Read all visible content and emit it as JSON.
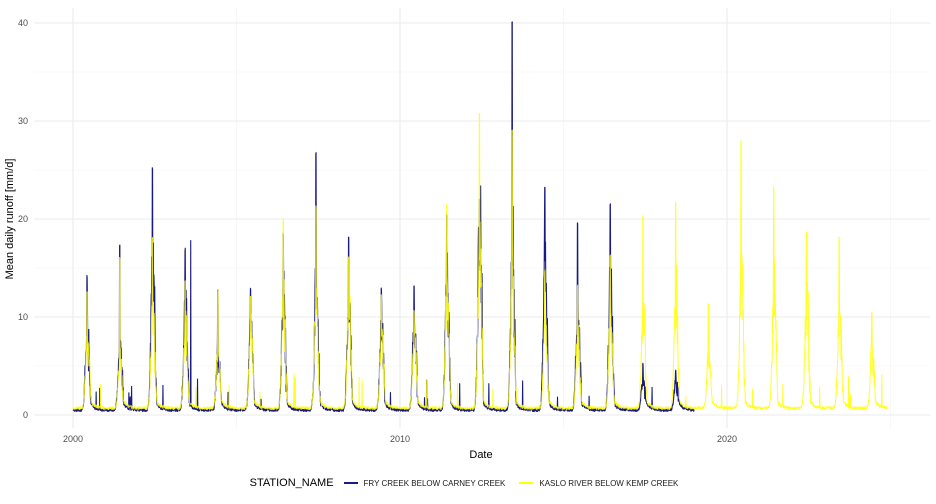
{
  "chart_data": {
    "type": "line",
    "title": "",
    "xlabel": "Date",
    "ylabel": "Mean daily runoff [mm/d]",
    "xlim": [
      1998.9,
      2026.2
    ],
    "ylim": [
      -1.2,
      41.5
    ],
    "x_ticks": [
      2000,
      2010,
      2020
    ],
    "x_tick_labels": [
      "2000",
      "2010",
      "2020"
    ],
    "x_minor_ticks": [
      2005,
      2015,
      2025
    ],
    "y_ticks": [
      0,
      10,
      20,
      30,
      40
    ],
    "y_tick_labels": [
      "0",
      "10",
      "20",
      "30",
      "40"
    ],
    "y_minor_ticks": [
      5,
      15,
      25,
      35
    ],
    "grid": true,
    "legend_position": "bottom",
    "legend_title": "STATION_NAME",
    "series": [
      {
        "name": "FRY CREEK BELOW CARNEY CREEK",
        "color": "#1a1a80",
        "x_range": [
          2000.0,
          2019.0
        ],
        "annual_peaks": [
          {
            "year": 2000,
            "peak": 13.6,
            "secondary": 10.3
          },
          {
            "year": 2001,
            "peak": 16.7,
            "secondary": 8.3
          },
          {
            "year": 2002,
            "peak": 24.6,
            "secondary": 18.5
          },
          {
            "year": 2003,
            "peak": 16.4,
            "secondary": 13.0
          },
          {
            "year": 2003.6,
            "peak": 17.8,
            "secondary": 3.0
          },
          {
            "year": 2004,
            "peak": 12.3,
            "secondary": 7.3
          },
          {
            "year": 2005,
            "peak": 12.3,
            "secondary": 11.0
          },
          {
            "year": 2006,
            "peak": 18.0,
            "secondary": 14.3
          },
          {
            "year": 2007,
            "peak": 26.2,
            "secondary": 15.8
          },
          {
            "year": 2008,
            "peak": 17.6,
            "secondary": 14.5
          },
          {
            "year": 2009,
            "peak": 12.3,
            "secondary": 10.0
          },
          {
            "year": 2010,
            "peak": 12.7,
            "secondary": 11.2
          },
          {
            "year": 2011,
            "peak": 19.8,
            "secondary": 15.0
          },
          {
            "year": 2012,
            "peak": 21.6,
            "secondary": 24.5
          },
          {
            "year": 2013,
            "peak": 39.7,
            "secondary": 19.0
          },
          {
            "year": 2014,
            "peak": 22.6,
            "secondary": 18.7
          },
          {
            "year": 2015,
            "peak": 19.0,
            "secondary": 13.0
          },
          {
            "year": 2016,
            "peak": 21.1,
            "secondary": 16.0
          },
          {
            "year": 2017,
            "peak": 4.8,
            "secondary": 3.9
          },
          {
            "year": 2018,
            "peak": 4.0,
            "secondary": 3.4
          }
        ]
      },
      {
        "name": "KASLO RIVER BELOW KEMP CREEK",
        "color": "#ffff00",
        "x_range": [
          2000.0,
          2024.9
        ],
        "annual_peaks": [
          {
            "year": 2000,
            "peak": 12.0,
            "secondary": 9.0
          },
          {
            "year": 2001,
            "peak": 15.3,
            "secondary": 6.0
          },
          {
            "year": 2002,
            "peak": 17.3,
            "secondary": 12.0
          },
          {
            "year": 2003,
            "peak": 13.0,
            "secondary": 10.0
          },
          {
            "year": 2004,
            "peak": 12.0,
            "secondary": 6.5
          },
          {
            "year": 2005,
            "peak": 11.5,
            "secondary": 9.5
          },
          {
            "year": 2006,
            "peak": 19.2,
            "secondary": 13.0
          },
          {
            "year": 2007,
            "peak": 20.5,
            "secondary": 14.0
          },
          {
            "year": 2008,
            "peak": 15.5,
            "secondary": 12.0
          },
          {
            "year": 2009,
            "peak": 11.5,
            "secondary": 9.0
          },
          {
            "year": 2010,
            "peak": 10.0,
            "secondary": 8.5
          },
          {
            "year": 2011,
            "peak": 20.7,
            "secondary": 14.0
          },
          {
            "year": 2012,
            "peak": 30.0,
            "secondary": 20.0
          },
          {
            "year": 2013,
            "peak": 28.3,
            "secondary": 17.0
          },
          {
            "year": 2014,
            "peak": 14.0,
            "secondary": 10.0
          },
          {
            "year": 2015,
            "peak": 12.5,
            "secondary": 9.0
          },
          {
            "year": 2016,
            "peak": 15.5,
            "secondary": 11.0
          },
          {
            "year": 2017,
            "peak": 19.6,
            "secondary": 12.0
          },
          {
            "year": 2018,
            "peak": 21.0,
            "secondary": 14.0
          },
          {
            "year": 2019,
            "peak": 10.5,
            "secondary": 7.0
          },
          {
            "year": 2020,
            "peak": 27.2,
            "secondary": 15.5
          },
          {
            "year": 2021,
            "peak": 22.5,
            "secondary": 14.0
          },
          {
            "year": 2022,
            "peak": 17.8,
            "secondary": 13.0
          },
          {
            "year": 2023,
            "peak": 17.3,
            "secondary": 11.0
          },
          {
            "year": 2024,
            "peak": 9.7,
            "secondary": 7.5
          }
        ]
      }
    ]
  }
}
